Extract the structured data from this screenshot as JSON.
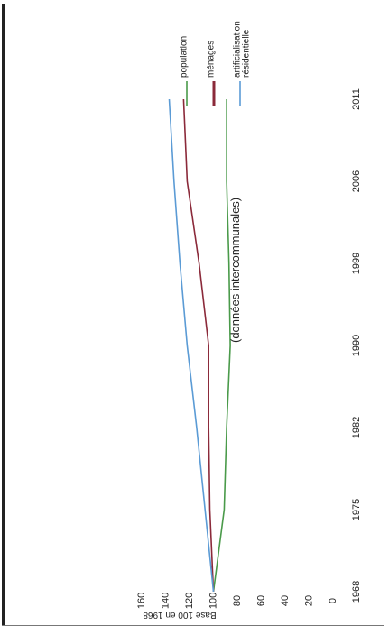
{
  "chart_data": {
    "type": "line",
    "orientation": "rotated-90-clockwise",
    "subtitle": "(données intercommunales)",
    "ylabel": "Base 100 en 1968",
    "xlabel": "",
    "x": [
      "1968",
      "1975",
      "1982",
      "1990",
      "1999",
      "2006",
      "2011"
    ],
    "ylim": [
      0,
      160
    ],
    "yticks": [
      0,
      20,
      40,
      60,
      80,
      100,
      120,
      140,
      160
    ],
    "grid": false,
    "legend_position": "top-right",
    "series": [
      {
        "name": "population",
        "color": "#4a9a4a",
        "values": [
          100,
          91,
          89,
          86,
          87,
          89,
          89
        ]
      },
      {
        "name": "ménages",
        "color": "#8b2a3a",
        "values": [
          100,
          103,
          104,
          104,
          112,
          122,
          125
        ]
      },
      {
        "name": "artificialisation résidentielle",
        "color": "#5b9bd5",
        "values": [
          100,
          107,
          114,
          122,
          128,
          133,
          137
        ]
      }
    ]
  }
}
